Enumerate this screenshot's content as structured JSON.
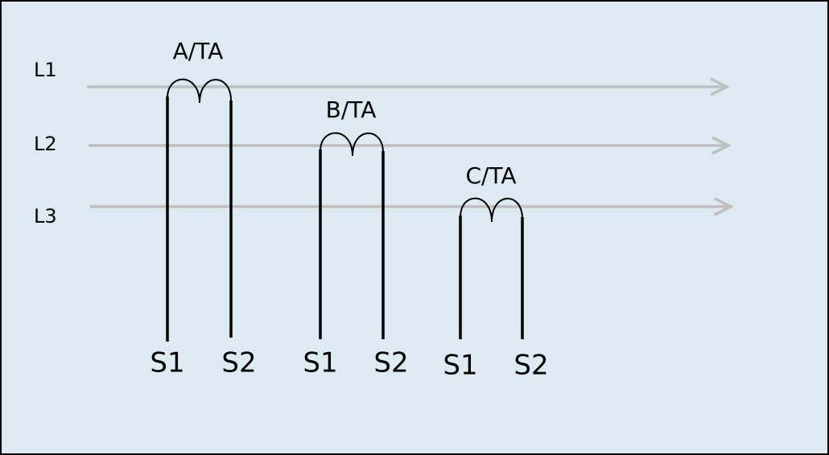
{
  "lines": [
    {
      "label": "L1"
    },
    {
      "label": "L2"
    },
    {
      "label": "L3"
    }
  ],
  "transformers": [
    {
      "label": "A/TA",
      "terminals": [
        "S1",
        "S2"
      ]
    },
    {
      "label": "B/TA",
      "terminals": [
        "S1",
        "S2"
      ]
    },
    {
      "label": "C/TA",
      "terminals": [
        "S1",
        "S2"
      ]
    }
  ]
}
